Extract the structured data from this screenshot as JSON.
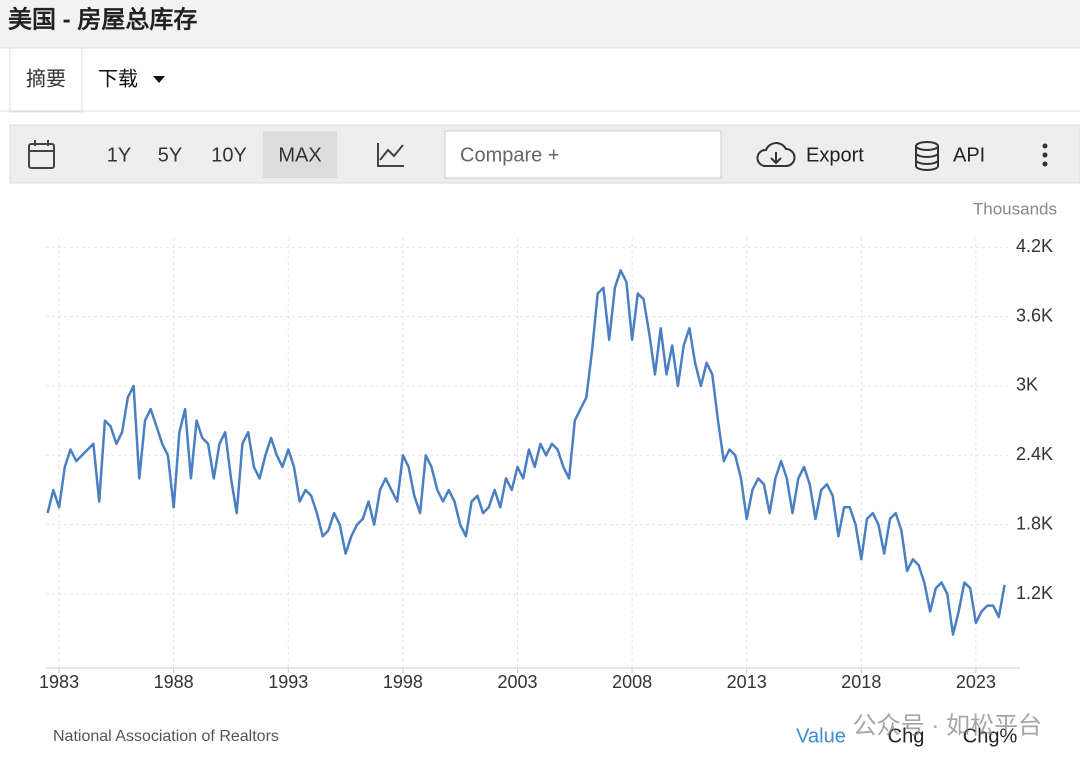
{
  "ui": {
    "title": "美国 - 房屋总库存",
    "tabs": [
      "摘要",
      "下载"
    ],
    "ranges": [
      "1Y",
      "5Y",
      "10Y",
      "MAX"
    ],
    "compare": "Compare +",
    "export": "Export",
    "api": "API",
    "bottom_tabs": [
      "Value",
      "Chg",
      "Chg%"
    ],
    "watermark": "公众号 · 如松平台"
  },
  "chart_data": {
    "type": "line",
    "y_unit": "Thousands",
    "source": "National Association of Realtors",
    "color": "#4a7fc1",
    "grid": true,
    "xlim": [
      1982.43,
      2024.4
    ],
    "xticks": [
      1983,
      1988,
      1993,
      1998,
      2003,
      2008,
      2013,
      2018,
      2023
    ],
    "ylim": [
      560,
      4280
    ],
    "yticks": [
      {
        "value": 1200,
        "label": "1.2K"
      },
      {
        "value": 1800,
        "label": "1.8K"
      },
      {
        "value": 2400,
        "label": "2.4K"
      },
      {
        "value": 3000,
        "label": "3K"
      },
      {
        "value": 3600,
        "label": "3.6K"
      },
      {
        "value": 4200,
        "label": "4.2K"
      }
    ],
    "x": [
      1982.5,
      1982.75,
      1983,
      1983.25,
      1983.5,
      1983.75,
      1984,
      1984.25,
      1984.5,
      1984.75,
      1985,
      1985.25,
      1985.5,
      1985.75,
      1986,
      1986.25,
      1986.5,
      1986.75,
      1987,
      1987.25,
      1987.5,
      1987.75,
      1988,
      1988.25,
      1988.5,
      1988.75,
      1989,
      1989.25,
      1989.5,
      1989.75,
      1990,
      1990.25,
      1990.5,
      1990.75,
      1991,
      1991.25,
      1991.5,
      1991.75,
      1992,
      1992.25,
      1992.5,
      1992.75,
      1993,
      1993.25,
      1993.5,
      1993.75,
      1994,
      1994.25,
      1994.5,
      1994.75,
      1995,
      1995.25,
      1995.5,
      1995.75,
      1996,
      1996.25,
      1996.5,
      1996.75,
      1997,
      1997.25,
      1997.5,
      1997.75,
      1998,
      1998.25,
      1998.5,
      1998.75,
      1999,
      1999.25,
      1999.5,
      1999.75,
      2000,
      2000.25,
      2000.5,
      2000.75,
      2001,
      2001.25,
      2001.5,
      2001.75,
      2002,
      2002.25,
      2002.5,
      2002.75,
      2003,
      2003.25,
      2003.5,
      2003.75,
      2004,
      2004.25,
      2004.5,
      2004.75,
      2005,
      2005.25,
      2005.5,
      2005.75,
      2006,
      2006.25,
      2006.5,
      2006.75,
      2007,
      2007.25,
      2007.5,
      2007.75,
      2008,
      2008.25,
      2008.5,
      2008.75,
      2009,
      2009.25,
      2009.5,
      2009.75,
      2010,
      2010.25,
      2010.5,
      2010.75,
      2011,
      2011.25,
      2011.5,
      2011.75,
      2012,
      2012.25,
      2012.5,
      2012.75,
      2013,
      2013.25,
      2013.5,
      2013.75,
      2014,
      2014.25,
      2014.5,
      2014.75,
      2015,
      2015.25,
      2015.5,
      2015.75,
      2016,
      2016.25,
      2016.5,
      2016.75,
      2017,
      2017.25,
      2017.5,
      2017.75,
      2018,
      2018.25,
      2018.5,
      2018.75,
      2019,
      2019.25,
      2019.5,
      2019.75,
      2020,
      2020.25,
      2020.5,
      2020.75,
      2021,
      2021.25,
      2021.5,
      2021.75,
      2022,
      2022.25,
      2022.5,
      2022.75,
      2023,
      2023.25,
      2023.5,
      2023.75,
      2024,
      2024.25
    ],
    "values": [
      1900,
      2100,
      1950,
      2300,
      2450,
      2350,
      2400,
      2450,
      2500,
      2000,
      2700,
      2650,
      2500,
      2600,
      2900,
      3000,
      2200,
      2700,
      2800,
      2650,
      2500,
      2400,
      1950,
      2600,
      2800,
      2200,
      2700,
      2550,
      2500,
      2200,
      2500,
      2600,
      2200,
      1900,
      2500,
      2600,
      2300,
      2200,
      2400,
      2550,
      2400,
      2300,
      2450,
      2300,
      2000,
      2100,
      2050,
      1900,
      1700,
      1750,
      1900,
      1800,
      1550,
      1700,
      1800,
      1850,
      2000,
      1800,
      2100,
      2200,
      2100,
      2000,
      2400,
      2300,
      2050,
      1900,
      2400,
      2300,
      2100,
      2000,
      2100,
      2000,
      1800,
      1700,
      2000,
      2050,
      1900,
      1950,
      2100,
      1950,
      2200,
      2100,
      2300,
      2200,
      2450,
      2300,
      2500,
      2400,
      2500,
      2450,
      2300,
      2200,
      2700,
      2800,
      2900,
      3300,
      3800,
      3850,
      3400,
      3850,
      4000,
      3900,
      3400,
      3800,
      3750,
      3450,
      3100,
      3500,
      3100,
      3350,
      3000,
      3350,
      3500,
      3200,
      3000,
      3200,
      3100,
      2700,
      2350,
      2450,
      2400,
      2200,
      1850,
      2100,
      2200,
      2150,
      1900,
      2200,
      2350,
      2200,
      1900,
      2200,
      2300,
      2150,
      1850,
      2100,
      2150,
      2050,
      1700,
      1950,
      1950,
      1800,
      1500,
      1850,
      1900,
      1800,
      1550,
      1850,
      1900,
      1750,
      1400,
      1500,
      1450,
      1300,
      1050,
      1250,
      1300,
      1200,
      850,
      1050,
      1300,
      1250,
      950,
      1050,
      1100,
      1100,
      1000,
      1280
    ]
  }
}
